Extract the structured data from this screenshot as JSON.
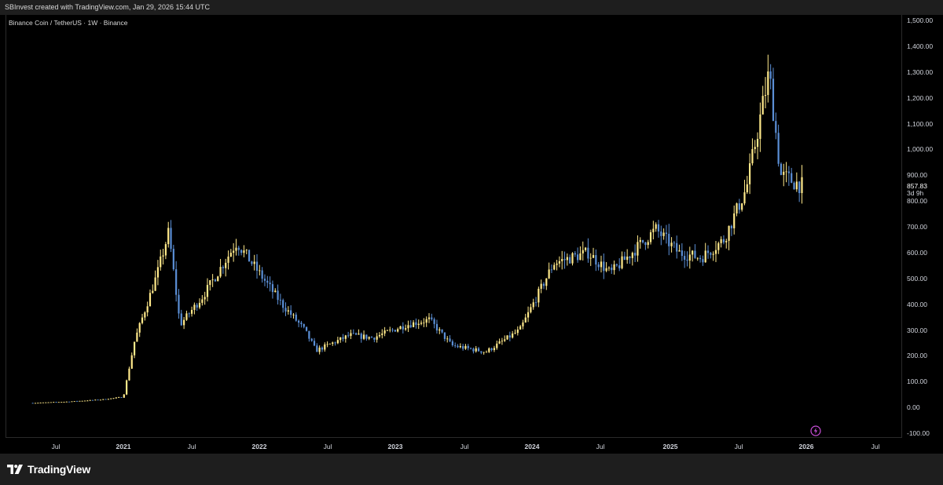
{
  "header": {
    "caption": "SBInvest created with TradingView.com, Jan 29, 2026 15:44 UTC"
  },
  "chart": {
    "symbol_title": "Binance Coin / TetherUS · 1W · Binance",
    "last_price": "857.83",
    "countdown": "3d 9h"
  },
  "footer": {
    "brand": "TradingView"
  },
  "colors": {
    "background": "#000000",
    "up_candle": "#ffe98a",
    "down_candle": "#5b8fd6",
    "text": "#d1d4dc",
    "panel": "#1e1e1e",
    "icon_accent": "#c94fd9"
  },
  "icons": [
    "tradingview-logo-icon",
    "flash-icon"
  ],
  "chart_data": {
    "type": "candlestick",
    "title": "Binance Coin / TetherUS · 1W · Binance",
    "xlabel": "",
    "ylabel": "",
    "ylim": [
      -100,
      1500
    ],
    "x_ticks": [
      "Jul",
      "2021",
      "Jul",
      "2022",
      "Jul",
      "2023",
      "Jul",
      "2024",
      "Jul",
      "2025",
      "Jul",
      "2026",
      "Jul"
    ],
    "y_ticks": [
      "1,500.00",
      "1,400.00",
      "1,300.00",
      "1,200.00",
      "1,100.00",
      "1,000.00",
      "900.00",
      "800.00",
      "700.00",
      "600.00",
      "500.00",
      "400.00",
      "300.00",
      "200.00",
      "100.00",
      "0.00",
      "-100.00"
    ],
    "grid": false,
    "legend": "none",
    "approximate_weekly_closes": [
      {
        "date": "2020-05",
        "value": 17
      },
      {
        "date": "2020-08",
        "value": 22
      },
      {
        "date": "2020-11",
        "value": 30
      },
      {
        "date": "2021-01",
        "value": 40
      },
      {
        "date": "2021-02",
        "value": 260
      },
      {
        "date": "2021-04",
        "value": 520
      },
      {
        "date": "2021-05",
        "value": 680
      },
      {
        "date": "2021-06",
        "value": 320
      },
      {
        "date": "2021-08",
        "value": 430
      },
      {
        "date": "2021-11",
        "value": 640
      },
      {
        "date": "2022-01",
        "value": 520
      },
      {
        "date": "2022-03",
        "value": 400
      },
      {
        "date": "2022-05",
        "value": 300
      },
      {
        "date": "2022-06",
        "value": 220
      },
      {
        "date": "2022-09",
        "value": 280
      },
      {
        "date": "2022-11",
        "value": 270
      },
      {
        "date": "2023-02",
        "value": 320
      },
      {
        "date": "2023-04",
        "value": 340
      },
      {
        "date": "2023-06",
        "value": 240
      },
      {
        "date": "2023-09",
        "value": 215
      },
      {
        "date": "2023-12",
        "value": 300
      },
      {
        "date": "2024-03",
        "value": 560
      },
      {
        "date": "2024-06",
        "value": 600
      },
      {
        "date": "2024-08",
        "value": 520
      },
      {
        "date": "2024-12",
        "value": 690
      },
      {
        "date": "2025-02",
        "value": 600
      },
      {
        "date": "2025-04",
        "value": 580
      },
      {
        "date": "2025-06",
        "value": 650
      },
      {
        "date": "2025-08",
        "value": 850
      },
      {
        "date": "2025-10",
        "value": 1300
      },
      {
        "date": "2025-11",
        "value": 900
      },
      {
        "date": "2026-01",
        "value": 857.83
      }
    ]
  }
}
